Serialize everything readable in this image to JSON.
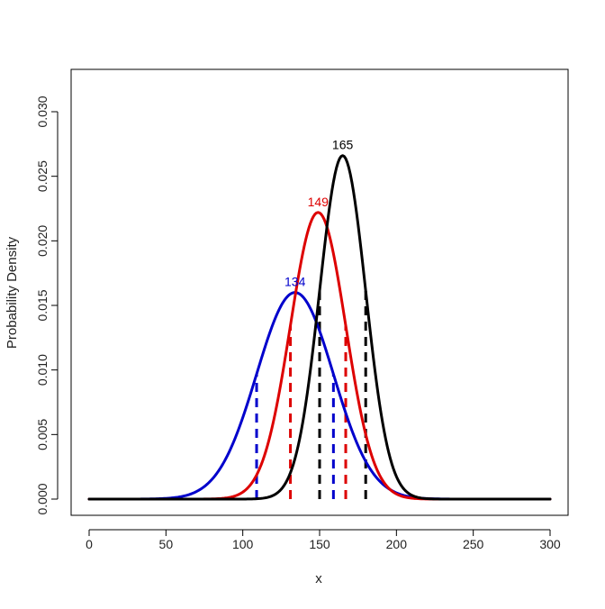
{
  "chart_data": {
    "type": "line",
    "title": "",
    "xlabel": "x",
    "ylabel": "Probability Density",
    "xlim": [
      0,
      300
    ],
    "ylim": [
      0,
      0.03
    ],
    "x_ticks": [
      "0",
      "50",
      "100",
      "150",
      "200",
      "250",
      "300"
    ],
    "y_ticks": [
      "0.000",
      "0.005",
      "0.010",
      "0.015",
      "0.020",
      "0.025",
      "0.030"
    ],
    "grid": false,
    "legend": "none",
    "series": [
      {
        "color": "#0000cc",
        "mean": 134,
        "peak_label": "134",
        "peak_density": 0.016,
        "interval_bounds": [
          109,
          159
        ],
        "curve": [
          [
            0,
            0.0
          ],
          [
            50,
            0.0003
          ],
          [
            70,
            0.0016
          ],
          [
            90,
            0.0051
          ],
          [
            100,
            0.0078
          ],
          [
            110,
            0.0109
          ],
          [
            120,
            0.0138
          ],
          [
            130,
            0.0157
          ],
          [
            134,
            0.016
          ],
          [
            140,
            0.0156
          ],
          [
            150,
            0.0139
          ],
          [
            160,
            0.0111
          ],
          [
            170,
            0.0079
          ],
          [
            180,
            0.0049
          ],
          [
            200,
            0.0013
          ],
          [
            220,
            0.0002
          ],
          [
            300,
            0.0
          ]
        ]
      },
      {
        "color": "#dd0000",
        "mean": 149,
        "peak_label": "149",
        "peak_density": 0.0222,
        "interval_bounds": [
          131,
          167
        ],
        "curve": [
          [
            0,
            0.0
          ],
          [
            80,
            0.0
          ],
          [
            90,
            0.0002
          ],
          [
            100,
            0.0008
          ],
          [
            110,
            0.0025
          ],
          [
            120,
            0.006
          ],
          [
            130,
            0.0119
          ],
          [
            140,
            0.0187
          ],
          [
            149,
            0.0222
          ],
          [
            155,
            0.0212
          ],
          [
            160,
            0.0182
          ],
          [
            170,
            0.0108
          ],
          [
            180,
            0.0042
          ],
          [
            190,
            0.0012
          ],
          [
            200,
            0.0002
          ],
          [
            220,
            0.0
          ],
          [
            300,
            0.0
          ]
        ]
      },
      {
        "color": "#000000",
        "mean": 165,
        "peak_label": "165",
        "peak_density": 0.0266,
        "interval_bounds": [
          150,
          180
        ],
        "curve": [
          [
            0,
            0.0
          ],
          [
            110,
            0.0
          ],
          [
            120,
            0.0002
          ],
          [
            130,
            0.0016
          ],
          [
            140,
            0.0067
          ],
          [
            150,
            0.0161
          ],
          [
            157,
            0.0232
          ],
          [
            165,
            0.0266
          ],
          [
            173,
            0.0232
          ],
          [
            180,
            0.0161
          ],
          [
            190,
            0.0067
          ],
          [
            200,
            0.0016
          ],
          [
            210,
            0.0002
          ],
          [
            220,
            0.0
          ],
          [
            300,
            0.0
          ]
        ]
      }
    ]
  }
}
